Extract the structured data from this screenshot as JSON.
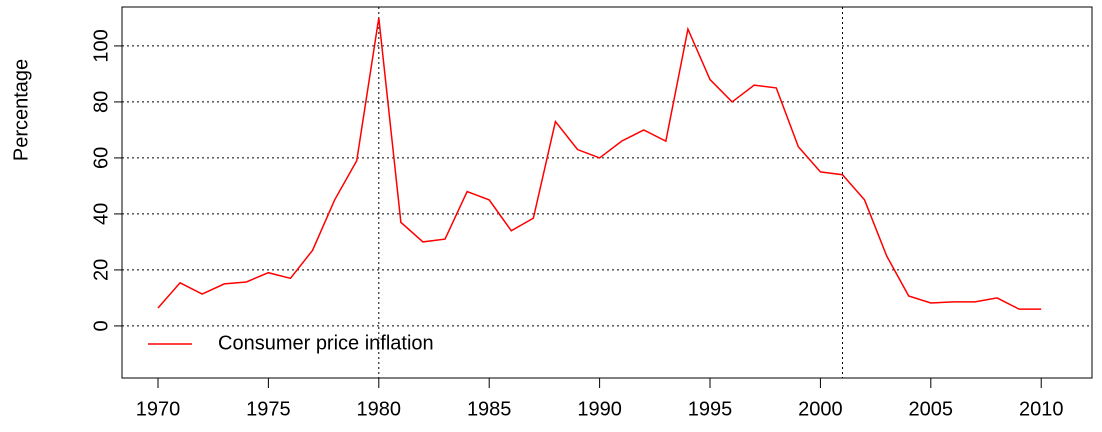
{
  "chart_data": {
    "type": "line",
    "y_label": "Percentage",
    "x": [
      1970,
      1971,
      1972,
      1973,
      1974,
      1975,
      1976,
      1977,
      1978,
      1979,
      1980,
      1981,
      1982,
      1983,
      1984,
      1985,
      1986,
      1987,
      1988,
      1989,
      1990,
      1991,
      1992,
      1993,
      1994,
      1995,
      1996,
      1997,
      1998,
      1999,
      2000,
      2001,
      2002,
      2003,
      2004,
      2005,
      2006,
      2007,
      2008,
      2009,
      2010
    ],
    "series": [
      {
        "name": "Consumer price inflation",
        "color": "#ff0000",
        "values": [
          6.4,
          15.4,
          11.4,
          15,
          15.7,
          19,
          17,
          27,
          45,
          59,
          110,
          37,
          30,
          31,
          48,
          45,
          34,
          38.5,
          73,
          63,
          60,
          66,
          70,
          66,
          106,
          88,
          80,
          86,
          85,
          64,
          55,
          54,
          45,
          25,
          10.7,
          8.2,
          8.6,
          8.6,
          10,
          6,
          6
        ]
      }
    ],
    "xlim": [
      1968.37,
      2012.3
    ],
    "xticks": [
      1970,
      1975,
      1980,
      1985,
      1990,
      1995,
      2000,
      2005,
      2010
    ],
    "ylim": [
      -18.6,
      113.9
    ],
    "yticks": [
      0,
      20,
      40,
      60,
      80,
      100
    ],
    "grid": true,
    "vlines": [
      1980,
      2001
    ],
    "legend": "bottom-left"
  }
}
